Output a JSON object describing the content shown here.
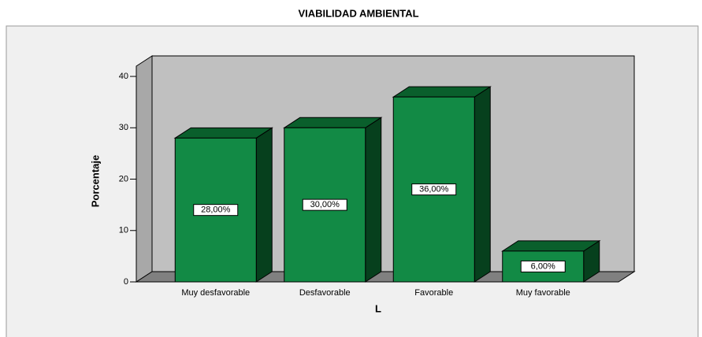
{
  "chart_data": {
    "type": "bar3d",
    "title": "VIABILIDAD AMBIENTAL",
    "categories": [
      "Muy desfavorable",
      "Desfavorable",
      "Favorable",
      "Muy favorable"
    ],
    "values": [
      28,
      30,
      36,
      6
    ],
    "value_labels": [
      "28,00%",
      "30,00%",
      "36,00%",
      "6,00%"
    ],
    "color": "#128a45",
    "ylabel": "Porcentaje",
    "xlabel": "L",
    "ylim": [
      0,
      42
    ],
    "yticks": [
      0,
      10,
      20,
      30,
      40
    ],
    "grid": false
  }
}
